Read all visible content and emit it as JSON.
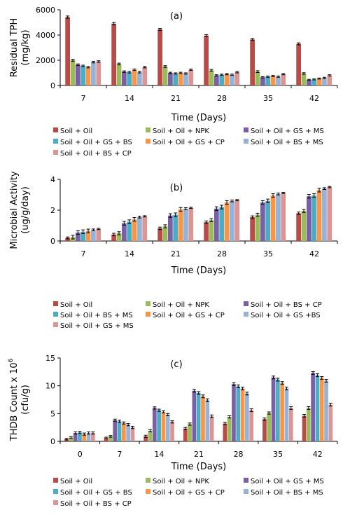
{
  "chart_data": [
    {
      "type": "bar",
      "panel_label": "(a)",
      "xlabel": "Time (Days)",
      "ylabel_lines": [
        "Residual TPH",
        "(mg/kg)"
      ],
      "ylim": [
        0,
        6000
      ],
      "yticks": [
        "0",
        "2000",
        "4000",
        "6000"
      ],
      "categories": [
        "7",
        "14",
        "21",
        "28",
        "35",
        "42"
      ],
      "error_bars": true,
      "grid": false,
      "legend_position": "bottom",
      "series": [
        {
          "name": "Soil + Oil",
          "color": "#b94a48",
          "values": [
            5420,
            4900,
            4450,
            3950,
            3650,
            3300
          ],
          "errors": [
            90,
            90,
            80,
            80,
            80,
            80
          ]
        },
        {
          "name": "Soil + Oil + NPK",
          "color": "#9bbb59",
          "values": [
            2000,
            1700,
            1500,
            1200,
            1100,
            950
          ],
          "errors": [
            80,
            70,
            70,
            70,
            70,
            60
          ]
        },
        {
          "name": "Soil + Oil + GS + MS",
          "color": "#7b5fa5",
          "values": [
            1650,
            1100,
            1000,
            800,
            650,
            450
          ],
          "errors": [
            60,
            60,
            50,
            50,
            50,
            40
          ]
        },
        {
          "name": "Soil + Oil + GS + BS",
          "color": "#4bacc6",
          "values": [
            1550,
            1050,
            950,
            850,
            700,
            480
          ],
          "errors": [
            60,
            60,
            50,
            50,
            50,
            40
          ]
        },
        {
          "name": "Soil + Oil + GS + CP",
          "color": "#f79646",
          "values": [
            1450,
            1250,
            1000,
            900,
            750,
            550
          ],
          "errors": [
            60,
            60,
            50,
            50,
            50,
            40
          ]
        },
        {
          "name": "Soil + Oil + BS + MS",
          "color": "#95b3d7",
          "values": [
            1850,
            1050,
            950,
            850,
            700,
            600
          ],
          "errors": [
            60,
            60,
            50,
            50,
            50,
            50
          ]
        },
        {
          "name": "Soil + Oil + BS + CP",
          "color": "#d99694",
          "values": [
            1900,
            1450,
            1250,
            1050,
            900,
            800
          ],
          "errors": [
            60,
            60,
            50,
            50,
            50,
            50
          ]
        }
      ]
    },
    {
      "type": "bar",
      "panel_label": "(b)",
      "xlabel": "Time (Days)",
      "ylabel_lines": [
        "Microbial Activity",
        "(ug/g/day)"
      ],
      "ylim": [
        0,
        4
      ],
      "yticks": [
        "0",
        "2",
        "4"
      ],
      "categories": [
        "7",
        "14",
        "21",
        "28",
        "35",
        "42"
      ],
      "error_bars": true,
      "grid": false,
      "legend_position": "bottom",
      "series": [
        {
          "name": "Soil + Oil",
          "color": "#b94a48",
          "values": [
            0.2,
            0.42,
            0.82,
            1.22,
            1.55,
            1.8
          ],
          "errors": [
            0.06,
            0.08,
            0.08,
            0.08,
            0.08,
            0.08
          ]
        },
        {
          "name": "Soil + Oil + NPK",
          "color": "#9bbb59",
          "values": [
            0.25,
            0.5,
            0.95,
            1.35,
            1.7,
            1.95
          ],
          "errors": [
            0.12,
            0.1,
            0.1,
            0.1,
            0.1,
            0.1
          ]
        },
        {
          "name": "Soil + Oil + BS + CP",
          "color": "#7b5fa5",
          "values": [
            0.55,
            1.15,
            1.65,
            2.1,
            2.5,
            2.9
          ],
          "errors": [
            0.12,
            0.12,
            0.12,
            0.12,
            0.12,
            0.12
          ]
        },
        {
          "name": "Soil + Oil + BS + MS",
          "color": "#4bacc6",
          "values": [
            0.6,
            1.25,
            1.7,
            2.2,
            2.6,
            2.95
          ],
          "errors": [
            0.12,
            0.12,
            0.12,
            0.12,
            0.12,
            0.12
          ]
        },
        {
          "name": "Soil + Oil + GS + CP",
          "color": "#f79646",
          "values": [
            0.65,
            1.4,
            2.05,
            2.5,
            2.95,
            3.3
          ],
          "errors": [
            0.12,
            0.12,
            0.12,
            0.12,
            0.12,
            0.12
          ]
        },
        {
          "name": "Soil + Oil + GS +BS",
          "color": "#95b3d7",
          "values": [
            0.72,
            1.55,
            2.1,
            2.6,
            3.05,
            3.4
          ],
          "errors": [
            0.06,
            0.06,
            0.06,
            0.06,
            0.06,
            0.06
          ]
        },
        {
          "name": "Soil + Oil + GS + MS",
          "color": "#d99694",
          "values": [
            0.78,
            1.6,
            2.15,
            2.65,
            3.12,
            3.5
          ],
          "errors": [
            0.04,
            0.04,
            0.04,
            0.04,
            0.04,
            0.04
          ]
        }
      ]
    },
    {
      "type": "bar",
      "panel_label": "(c)",
      "xlabel": "Time (Days)",
      "ylabel_main": "THDB Count x 10",
      "ylabel_sup": "6",
      "ylabel_unit": "(cfu/g)",
      "ylim": [
        0,
        15
      ],
      "yticks": [
        "0",
        "5",
        "10",
        "15"
      ],
      "categories": [
        "0",
        "7",
        "14",
        "21",
        "28",
        "35",
        "42"
      ],
      "error_bars": true,
      "grid": false,
      "legend_position": "bottom",
      "series": [
        {
          "name": "Soil + Oil",
          "color": "#b94a48",
          "values": [
            0.4,
            0.6,
            0.9,
            2.3,
            3.2,
            4.0,
            4.6
          ],
          "errors": [
            0.15,
            0.15,
            0.2,
            0.2,
            0.2,
            0.2,
            0.25
          ]
        },
        {
          "name": "Soil + Oil + NPK",
          "color": "#9bbb59",
          "values": [
            0.7,
            0.9,
            1.9,
            3.1,
            4.4,
            5.1,
            6.0
          ],
          "errors": [
            0.15,
            0.15,
            0.2,
            0.2,
            0.2,
            0.2,
            0.25
          ]
        },
        {
          "name": "Soil + Oil + GS + MS",
          "color": "#7b5fa5",
          "values": [
            1.5,
            3.8,
            6.0,
            9.1,
            10.3,
            11.5,
            12.3
          ],
          "errors": [
            0.2,
            0.2,
            0.2,
            0.25,
            0.25,
            0.25,
            0.25
          ]
        },
        {
          "name": "Soil + Oil + GS + BS",
          "color": "#4bacc6",
          "values": [
            1.6,
            3.6,
            5.6,
            8.7,
            9.9,
            11.1,
            11.9
          ],
          "errors": [
            0.2,
            0.2,
            0.2,
            0.25,
            0.25,
            0.25,
            0.25
          ]
        },
        {
          "name": "Soil + Oil + GS + CP",
          "color": "#f79646",
          "values": [
            1.3,
            3.3,
            5.3,
            8.1,
            9.5,
            10.5,
            11.4
          ],
          "errors": [
            0.2,
            0.2,
            0.2,
            0.25,
            0.25,
            0.25,
            0.25
          ]
        },
        {
          "name": "Soil + Oil + BS + MS",
          "color": "#95b3d7",
          "values": [
            1.5,
            3.0,
            4.8,
            7.4,
            8.6,
            9.5,
            10.9
          ],
          "errors": [
            0.2,
            0.2,
            0.2,
            0.25,
            0.25,
            0.25,
            0.25
          ]
        },
        {
          "name": "Soil + Oil + BS + CP",
          "color": "#d99694",
          "values": [
            1.5,
            2.5,
            3.5,
            4.5,
            5.6,
            6.0,
            6.6
          ],
          "errors": [
            0.2,
            0.2,
            0.2,
            0.25,
            0.25,
            0.25,
            0.25
          ]
        }
      ]
    }
  ]
}
